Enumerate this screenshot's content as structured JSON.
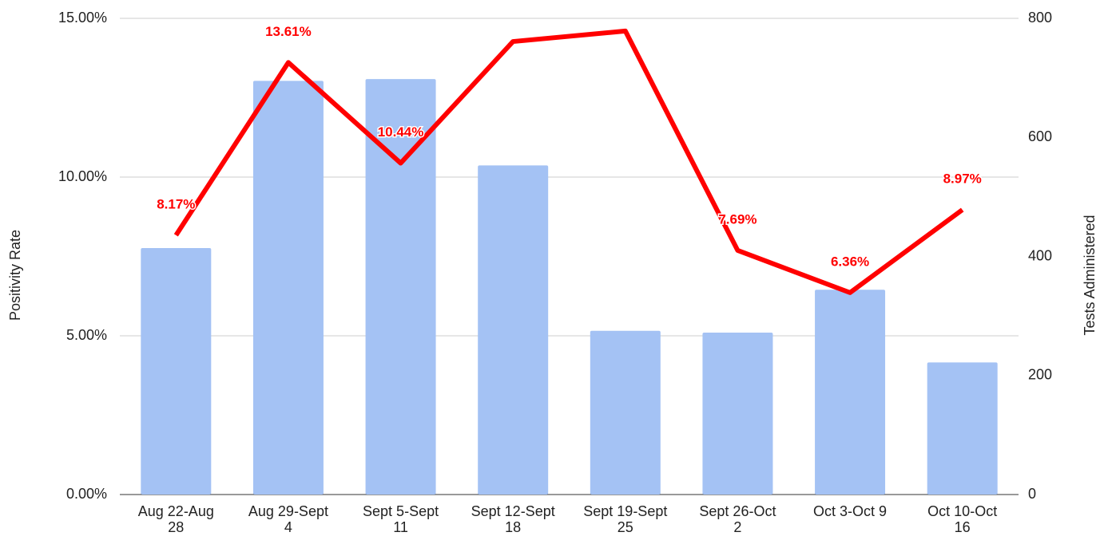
{
  "chart_data": {
    "type": "bar_line",
    "ylabel": "Positivity Rate",
    "y2label": "Tests Administered",
    "categories": [
      "Aug 22-Aug\n28",
      "Aug 29-Sept\n4",
      "Sept 5-Sept\n11",
      "Sept 12-Sept\n18",
      "Sept 19-Sept\n25",
      "Sept 26-Oct\n2",
      "Oct 3-Oct 9",
      "Oct 10-Oct\n16"
    ],
    "series": [
      {
        "type": "bar",
        "axis": "y2",
        "color": "#a4c2f4",
        "values": [
          414,
          695,
          698,
          553,
          275,
          272,
          344,
          222
        ]
      },
      {
        "type": "line",
        "axis": "y",
        "color": "#ff0000",
        "values": [
          8.17,
          13.61,
          10.44,
          14.27,
          14.6,
          7.69,
          6.36,
          8.97
        ],
        "value_labels": [
          "8.17%",
          "13.61%",
          "10.44%",
          null,
          null,
          "7.69%",
          "6.36%",
          "8.97%"
        ]
      }
    ],
    "ylim": [
      0,
      15
    ],
    "yticks": [
      {
        "value": 0,
        "label": "0.00%"
      },
      {
        "value": 5,
        "label": "5.00%"
      },
      {
        "value": 10,
        "label": "10.00%"
      },
      {
        "value": 15,
        "label": "15.00%"
      }
    ],
    "y2lim": [
      0,
      800
    ],
    "y2ticks": [
      0,
      200,
      400,
      600,
      800
    ],
    "grid": true
  }
}
